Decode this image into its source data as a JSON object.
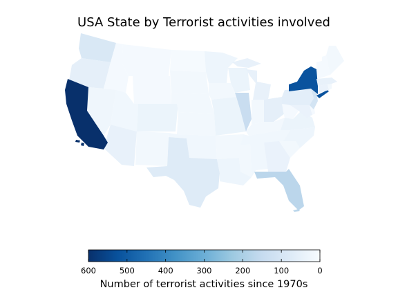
{
  "title": "USA State by Terrorist activities involved",
  "colorbar": {
    "label": "Number of terrorist activities since 1970s",
    "min": 0,
    "max": 600,
    "ticks": [
      600,
      500,
      400,
      300,
      200,
      100,
      0
    ],
    "colormap": "Blues",
    "direction": "reversed (high values on left)"
  },
  "chart_data": {
    "type": "choropleth",
    "title": "USA State by Terrorist activities involved",
    "value_label": "Number of terrorist activities since 1970s",
    "range": [
      0,
      600
    ],
    "states": [
      {
        "state": "California",
        "value": 600
      },
      {
        "state": "New York",
        "value": 520
      },
      {
        "state": "Washington",
        "value": 90
      },
      {
        "state": "Oregon",
        "value": 55
      },
      {
        "state": "Idaho",
        "value": 10
      },
      {
        "state": "Montana",
        "value": 10
      },
      {
        "state": "Wyoming",
        "value": 10
      },
      {
        "state": "Nevada",
        "value": 25
      },
      {
        "state": "Utah",
        "value": 20
      },
      {
        "state": "Arizona",
        "value": 45
      },
      {
        "state": "Colorado",
        "value": 35
      },
      {
        "state": "New Mexico",
        "value": 15
      },
      {
        "state": "North Dakota",
        "value": 5
      },
      {
        "state": "South Dakota",
        "value": 15
      },
      {
        "state": "Nebraska",
        "value": 15
      },
      {
        "state": "Kansas",
        "value": 15
      },
      {
        "state": "Oklahoma",
        "value": 20
      },
      {
        "state": "Texas",
        "value": 75
      },
      {
        "state": "Minnesota",
        "value": 30
      },
      {
        "state": "Iowa",
        "value": 15
      },
      {
        "state": "Missouri",
        "value": 35
      },
      {
        "state": "Arkansas",
        "value": 15
      },
      {
        "state": "Louisiana",
        "value": 30
      },
      {
        "state": "Wisconsin",
        "value": 35
      },
      {
        "state": "Illinois",
        "value": 140
      },
      {
        "state": "Michigan",
        "value": 45
      },
      {
        "state": "Indiana",
        "value": 15
      },
      {
        "state": "Ohio",
        "value": 55
      },
      {
        "state": "Kentucky",
        "value": 15
      },
      {
        "state": "Tennessee",
        "value": 20
      },
      {
        "state": "Mississippi",
        "value": 15
      },
      {
        "state": "Alabama",
        "value": 20
      },
      {
        "state": "Georgia",
        "value": 40
      },
      {
        "state": "Florida",
        "value": 170
      },
      {
        "state": "South Carolina",
        "value": 15
      },
      {
        "state": "North Carolina",
        "value": 30
      },
      {
        "state": "Virginia",
        "value": 35
      },
      {
        "state": "West Virginia",
        "value": 10
      },
      {
        "state": "Pennsylvania",
        "value": 60
      },
      {
        "state": "New Jersey",
        "value": 110
      },
      {
        "state": "Maryland",
        "value": 40
      },
      {
        "state": "Delaware",
        "value": 10
      },
      {
        "state": "Connecticut",
        "value": 40
      },
      {
        "state": "Rhode Island",
        "value": 15
      },
      {
        "state": "Massachusetts",
        "value": 45
      },
      {
        "state": "Vermont",
        "value": 10
      },
      {
        "state": "New Hampshire",
        "value": 10
      },
      {
        "state": "Maine",
        "value": 15
      }
    ]
  }
}
